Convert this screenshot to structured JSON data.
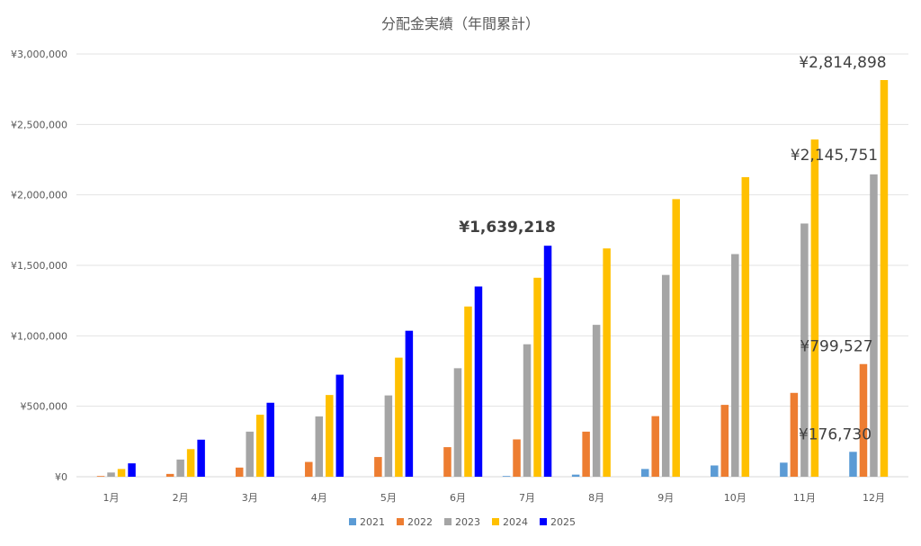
{
  "chart_data": {
    "type": "bar",
    "title": "分配金実績（年間累計）",
    "categories": [
      "1月",
      "2月",
      "3月",
      "4月",
      "5月",
      "6月",
      "7月",
      "8月",
      "9月",
      "10月",
      "11月",
      "12月"
    ],
    "ylim": [
      0,
      3000000
    ],
    "yticks": [
      {
        "value": 0,
        "label": "¥0"
      },
      {
        "value": 500000,
        "label": "¥500,000"
      },
      {
        "value": 1000000,
        "label": "¥1,000,000"
      },
      {
        "value": 1500000,
        "label": "¥1,500,000"
      },
      {
        "value": 2000000,
        "label": "¥2,000,000"
      },
      {
        "value": 2500000,
        "label": "¥2,500,000"
      },
      {
        "value": 3000000,
        "label": "¥3,000,000"
      }
    ],
    "grid": true,
    "legend_position": "bottom",
    "series": [
      {
        "name": "2021",
        "color": "#5B9BD5",
        "values": [
          null,
          null,
          null,
          null,
          null,
          null,
          5000,
          15000,
          55000,
          80000,
          100000,
          176730
        ]
      },
      {
        "name": "2022",
        "color": "#ED7D31",
        "values": [
          2000,
          20000,
          65000,
          105000,
          140000,
          210000,
          265000,
          320000,
          430000,
          510000,
          595000,
          799527
        ]
      },
      {
        "name": "2023",
        "color": "#A5A5A5",
        "values": [
          30000,
          122000,
          320000,
          428000,
          577000,
          770000,
          940000,
          1078000,
          1432000,
          1580000,
          1797000,
          2145751
        ]
      },
      {
        "name": "2024",
        "color": "#FFC000",
        "values": [
          55000,
          196000,
          440000,
          580000,
          845000,
          1208000,
          1412000,
          1620000,
          1970000,
          2126000,
          2393000,
          2814898
        ]
      },
      {
        "name": "2025",
        "color": "#0000FF",
        "values": [
          95000,
          263000,
          525000,
          724000,
          1036000,
          1350000,
          1639218,
          null,
          null,
          null,
          null,
          null
        ]
      }
    ],
    "annotations": [
      {
        "label": "¥2,814,898",
        "series": "2024",
        "category": "12月",
        "bold": false
      },
      {
        "label": "¥2,145,751",
        "series": "2023",
        "category": "12月",
        "bold": false
      },
      {
        "label": "¥799,527",
        "series": "2022",
        "category": "12月",
        "bold": false
      },
      {
        "label": "¥176,730",
        "series": "2021",
        "category": "12月",
        "bold": false
      },
      {
        "label": "¥1,639,218",
        "series": "2025",
        "category": "7月",
        "bold": true
      }
    ]
  }
}
